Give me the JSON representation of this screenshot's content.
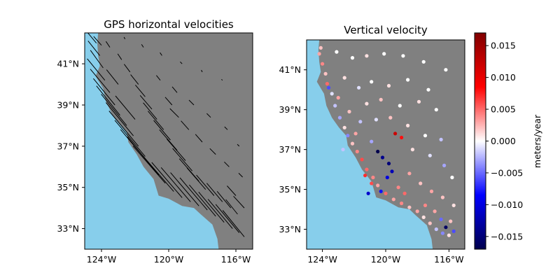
{
  "chart_data": [
    {
      "type": "quiver-map",
      "title": "GPS horizontal velocities",
      "xlim": [
        -125,
        -115
      ],
      "ylim": [
        32,
        42.5
      ],
      "xticks": [
        {
          "v": -124,
          "label": "124°W"
        },
        {
          "v": -120,
          "label": "120°W"
        },
        {
          "v": -116,
          "label": "116°W"
        }
      ],
      "yticks": [
        {
          "v": 41,
          "label": "41°N"
        },
        {
          "v": 39,
          "label": "39°N"
        },
        {
          "v": 37,
          "label": "37°N"
        },
        {
          "v": 35,
          "label": "35°N"
        },
        {
          "v": 33,
          "label": "33°N"
        }
      ],
      "ocean_color": "#87ceeb",
      "land_color": "#808080",
      "vector_color": "#000000",
      "vector_note": "approximate representative subset of station velocity vectors (lon, lat, east m/yr, north m/yr)",
      "vectors": [
        [
          -124.3,
          42.0,
          -0.01,
          0.012
        ],
        [
          -124.1,
          41.4,
          -0.012,
          0.015
        ],
        [
          -123.9,
          40.8,
          -0.013,
          0.018
        ],
        [
          -123.8,
          40.2,
          -0.018,
          0.022
        ],
        [
          -123.5,
          39.6,
          -0.02,
          0.024
        ],
        [
          -123.2,
          39.0,
          -0.022,
          0.027
        ],
        [
          -122.9,
          38.5,
          -0.024,
          0.03
        ],
        [
          -122.5,
          38.0,
          -0.026,
          0.032
        ],
        [
          -122.1,
          37.5,
          -0.028,
          0.034
        ],
        [
          -121.8,
          37.0,
          -0.03,
          0.036
        ],
        [
          -121.4,
          36.5,
          -0.031,
          0.037
        ],
        [
          -121.0,
          36.0,
          -0.032,
          0.038
        ],
        [
          -120.6,
          35.6,
          -0.032,
          0.039
        ],
        [
          -120.2,
          35.2,
          -0.033,
          0.038
        ],
        [
          -119.7,
          34.8,
          -0.032,
          0.037
        ],
        [
          -119.2,
          34.5,
          -0.031,
          0.036
        ],
        [
          -118.7,
          34.3,
          -0.03,
          0.035
        ],
        [
          -118.2,
          34.1,
          -0.029,
          0.034
        ],
        [
          -117.7,
          33.9,
          -0.028,
          0.033
        ],
        [
          -117.2,
          33.6,
          -0.027,
          0.032
        ],
        [
          -116.7,
          33.3,
          -0.026,
          0.031
        ],
        [
          -116.2,
          33.0,
          -0.025,
          0.03
        ],
        [
          -115.8,
          32.8,
          -0.024,
          0.029
        ],
        [
          -115.5,
          32.6,
          -0.022,
          0.027
        ],
        [
          -123.5,
          41.8,
          -0.004,
          0.006
        ],
        [
          -122.8,
          41.2,
          -0.004,
          0.006
        ],
        [
          -122.3,
          40.6,
          -0.006,
          0.008
        ],
        [
          -121.8,
          40.0,
          -0.008,
          0.01
        ],
        [
          -121.4,
          39.4,
          -0.01,
          0.012
        ],
        [
          -121.0,
          38.8,
          -0.012,
          0.014
        ],
        [
          -120.7,
          38.3,
          -0.014,
          0.017
        ],
        [
          -120.3,
          37.8,
          -0.016,
          0.019
        ],
        [
          -119.9,
          37.3,
          -0.017,
          0.02
        ],
        [
          -119.5,
          36.8,
          -0.018,
          0.021
        ],
        [
          -119.0,
          36.3,
          -0.019,
          0.022
        ],
        [
          -118.6,
          35.8,
          -0.02,
          0.023
        ],
        [
          -118.2,
          35.3,
          -0.02,
          0.023
        ],
        [
          -117.8,
          34.9,
          -0.019,
          0.022
        ],
        [
          -117.3,
          34.6,
          -0.018,
          0.021
        ],
        [
          -116.8,
          34.3,
          -0.016,
          0.019
        ],
        [
          -116.3,
          34.0,
          -0.014,
          0.017
        ],
        [
          -115.9,
          33.7,
          -0.012,
          0.015
        ],
        [
          -122.6,
          42.2,
          -0.001,
          0.002
        ],
        [
          -121.5,
          41.8,
          -0.002,
          0.003
        ],
        [
          -120.4,
          41.4,
          -0.002,
          0.003
        ],
        [
          -119.2,
          41.0,
          -0.002,
          0.002
        ],
        [
          -118.0,
          40.6,
          -0.001,
          0.002
        ],
        [
          -116.8,
          40.2,
          -0.001,
          0.001
        ],
        [
          -120.5,
          40.2,
          -0.004,
          0.005
        ],
        [
          -119.5,
          39.6,
          -0.005,
          0.006
        ],
        [
          -118.5,
          39.0,
          -0.005,
          0.005
        ],
        [
          -117.5,
          38.4,
          -0.004,
          0.004
        ],
        [
          -116.5,
          37.8,
          -0.003,
          0.003
        ],
        [
          -115.8,
          37.0,
          -0.002,
          0.002
        ],
        [
          -119.8,
          39.0,
          -0.007,
          0.008
        ],
        [
          -119.4,
          38.4,
          -0.009,
          0.009
        ],
        [
          -118.8,
          37.8,
          -0.008,
          0.009
        ],
        [
          -118.0,
          37.2,
          -0.007,
          0.008
        ],
        [
          -117.2,
          36.6,
          -0.006,
          0.006
        ],
        [
          -116.4,
          36.0,
          -0.005,
          0.005
        ],
        [
          -115.6,
          35.5,
          -0.004,
          0.004
        ],
        [
          -116.0,
          34.6,
          -0.009,
          0.01
        ],
        [
          -115.5,
          34.0,
          -0.011,
          0.012
        ],
        [
          -124.0,
          41.9,
          -0.008,
          0.009
        ],
        [
          -123.0,
          40.0,
          -0.012,
          0.015
        ],
        [
          -122.0,
          38.3,
          -0.02,
          0.024
        ]
      ]
    },
    {
      "type": "scatter-map",
      "title": "Vertical velocity",
      "xlim": [
        -125,
        -115
      ],
      "ylim": [
        32,
        42.5
      ],
      "xticks": [
        {
          "v": -124,
          "label": "124°W"
        },
        {
          "v": -120,
          "label": "120°W"
        },
        {
          "v": -116,
          "label": "116°W"
        }
      ],
      "yticks": [
        {
          "v": 41,
          "label": "41°N"
        },
        {
          "v": 39,
          "label": "39°N"
        },
        {
          "v": 37,
          "label": "37°N"
        },
        {
          "v": 35,
          "label": "35°N"
        },
        {
          "v": 33,
          "label": "33°N"
        }
      ],
      "ocean_color": "#87ceeb",
      "land_color": "#808080",
      "colormap": "seismic",
      "clim": [
        -0.017,
        0.017
      ],
      "colorbar_label": "meters/year",
      "colorbar_ticks": [
        {
          "v": 0.015,
          "label": "0.015"
        },
        {
          "v": 0.01,
          "label": "0.010"
        },
        {
          "v": 0.005,
          "label": "0.005"
        },
        {
          "v": 0.0,
          "label": "0.000"
        },
        {
          "v": -0.005,
          "label": "−0.005"
        },
        {
          "v": -0.01,
          "label": "−0.010"
        },
        {
          "v": -0.015,
          "label": "−0.015"
        }
      ],
      "points_note": "approximate representative subset of stations (lon, lat, vertical m/yr)",
      "points": [
        [
          -124.2,
          41.8,
          0.003
        ],
        [
          -124.0,
          41.3,
          0.004
        ],
        [
          -123.8,
          40.8,
          0.002
        ],
        [
          -123.7,
          40.3,
          0.005
        ],
        [
          -123.4,
          39.8,
          -0.001
        ],
        [
          -123.2,
          39.2,
          -0.002
        ],
        [
          -122.9,
          38.6,
          -0.003
        ],
        [
          -122.6,
          38.1,
          0.001
        ],
        [
          -122.4,
          37.7,
          -0.004
        ],
        [
          -122.1,
          37.3,
          0.002
        ],
        [
          -121.8,
          36.9,
          0.004
        ],
        [
          -121.5,
          36.5,
          0.006
        ],
        [
          -121.2,
          36.0,
          0.005
        ],
        [
          -120.8,
          35.6,
          0.004
        ],
        [
          -120.5,
          35.2,
          0.003
        ],
        [
          -120.0,
          34.8,
          0.005
        ],
        [
          -119.5,
          34.5,
          0.003
        ],
        [
          -119.0,
          34.3,
          0.004
        ],
        [
          -118.5,
          34.1,
          0.002
        ],
        [
          -118.0,
          33.9,
          0.003
        ],
        [
          -117.6,
          33.6,
          0.001
        ],
        [
          -117.2,
          33.3,
          0.002
        ],
        [
          -116.8,
          33.0,
          -0.002
        ],
        [
          -116.4,
          32.8,
          -0.004
        ],
        [
          -116.0,
          32.7,
          0.001
        ],
        [
          -115.7,
          32.9,
          -0.006
        ],
        [
          -116.2,
          33.1,
          -0.016
        ],
        [
          -120.5,
          36.9,
          -0.017
        ],
        [
          -120.2,
          36.6,
          -0.014
        ],
        [
          -119.8,
          36.3,
          -0.015
        ],
        [
          -119.6,
          35.9,
          -0.012
        ],
        [
          -119.9,
          35.6,
          -0.01
        ],
        [
          -121.1,
          34.8,
          -0.011
        ],
        [
          -120.3,
          34.9,
          -0.008
        ],
        [
          -119.4,
          37.8,
          0.012
        ],
        [
          -119.0,
          37.6,
          0.008
        ],
        [
          -123.1,
          41.9,
          0.0
        ],
        [
          -122.1,
          41.6,
          0.0
        ],
        [
          -121.2,
          41.7,
          0.001
        ],
        [
          -120.1,
          41.8,
          0.0
        ],
        [
          -118.9,
          41.7,
          0.0
        ],
        [
          -117.6,
          41.4,
          0.0
        ],
        [
          -116.2,
          41.0,
          0.0
        ],
        [
          -122.6,
          40.6,
          0.001
        ],
        [
          -121.7,
          40.1,
          -0.001
        ],
        [
          -120.9,
          40.4,
          0.0
        ],
        [
          -119.8,
          40.2,
          0.001
        ],
        [
          -118.6,
          40.5,
          0.0
        ],
        [
          -117.3,
          40.0,
          0.0
        ],
        [
          -121.2,
          39.3,
          0.001
        ],
        [
          -120.3,
          39.5,
          0.002
        ],
        [
          -119.1,
          39.2,
          0.0
        ],
        [
          -117.9,
          39.4,
          0.001
        ],
        [
          -116.8,
          39.0,
          0.0
        ],
        [
          -120.6,
          38.5,
          -0.001
        ],
        [
          -119.7,
          38.6,
          0.002
        ],
        [
          -118.6,
          38.2,
          0.001
        ],
        [
          -117.5,
          37.7,
          0.0
        ],
        [
          -116.5,
          37.5,
          -0.002
        ],
        [
          -118.3,
          37.0,
          0.001
        ],
        [
          -117.2,
          36.7,
          -0.001
        ],
        [
          -116.3,
          36.2,
          -0.003
        ],
        [
          -115.8,
          35.6,
          0.0
        ],
        [
          -118.5,
          35.8,
          0.003
        ],
        [
          -117.8,
          35.3,
          0.002
        ],
        [
          -117.1,
          34.9,
          0.003
        ],
        [
          -116.4,
          34.6,
          0.002
        ],
        [
          -115.7,
          34.2,
          0.001
        ],
        [
          -122.3,
          38.9,
          0.002
        ],
        [
          -121.6,
          38.4,
          -0.002
        ],
        [
          -121.9,
          37.8,
          0.003
        ],
        [
          -120.9,
          37.4,
          -0.003
        ],
        [
          -121.3,
          35.7,
          0.007
        ],
        [
          -120.9,
          35.3,
          0.006
        ],
        [
          -119.2,
          35.1,
          0.004
        ],
        [
          -118.8,
          34.8,
          0.005
        ],
        [
          -117.5,
          34.2,
          0.004
        ],
        [
          -116.9,
          33.9,
          0.003
        ],
        [
          -116.5,
          33.5,
          -0.005
        ],
        [
          -115.9,
          33.4,
          0.002
        ],
        [
          -123.6,
          40.1,
          -0.006
        ],
        [
          -123.0,
          39.6,
          0.003
        ],
        [
          -122.7,
          37.0,
          -0.002
        ],
        [
          -124.1,
          42.1,
          0.002
        ]
      ]
    }
  ]
}
